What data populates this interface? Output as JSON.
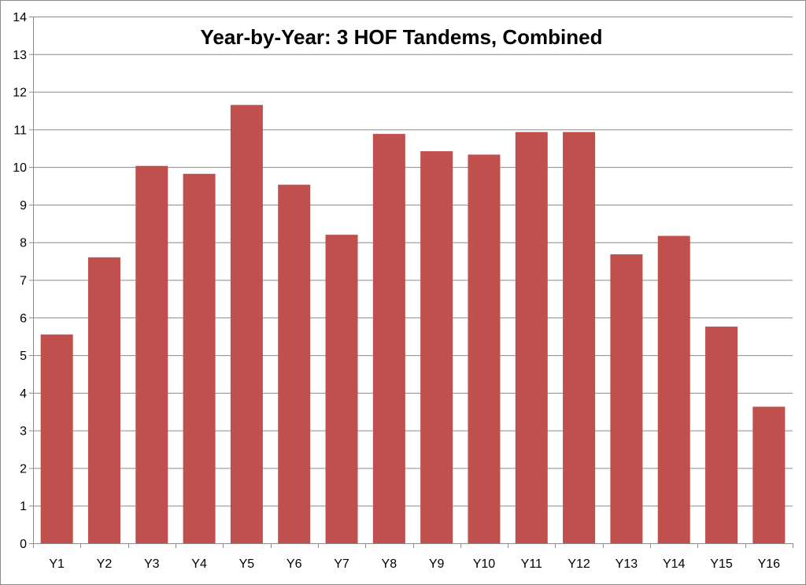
{
  "chart_data": {
    "type": "bar",
    "title": "Year-by-Year: 3 HOF Tandems, Combined",
    "xlabel": "",
    "ylabel": "",
    "categories": [
      "Y1",
      "Y2",
      "Y3",
      "Y4",
      "Y5",
      "Y6",
      "Y7",
      "Y8",
      "Y9",
      "Y10",
      "Y11",
      "Y12",
      "Y13",
      "Y14",
      "Y15",
      "Y16"
    ],
    "values": [
      5.55,
      7.6,
      10.03,
      9.82,
      11.65,
      9.53,
      8.2,
      10.88,
      10.42,
      10.33,
      10.93,
      10.93,
      7.68,
      8.17,
      5.76,
      3.63
    ],
    "ylim": [
      0,
      14
    ],
    "yticks": [
      "0",
      "1",
      "2",
      "3",
      "4",
      "5",
      "6",
      "7",
      "8",
      "9",
      "10",
      "11",
      "12",
      "13",
      "14"
    ],
    "grid": true,
    "legend": "none",
    "colors": {
      "bar": "#c0504d",
      "grid": "#8c8c8c",
      "axis": "#8c8c8c"
    }
  }
}
